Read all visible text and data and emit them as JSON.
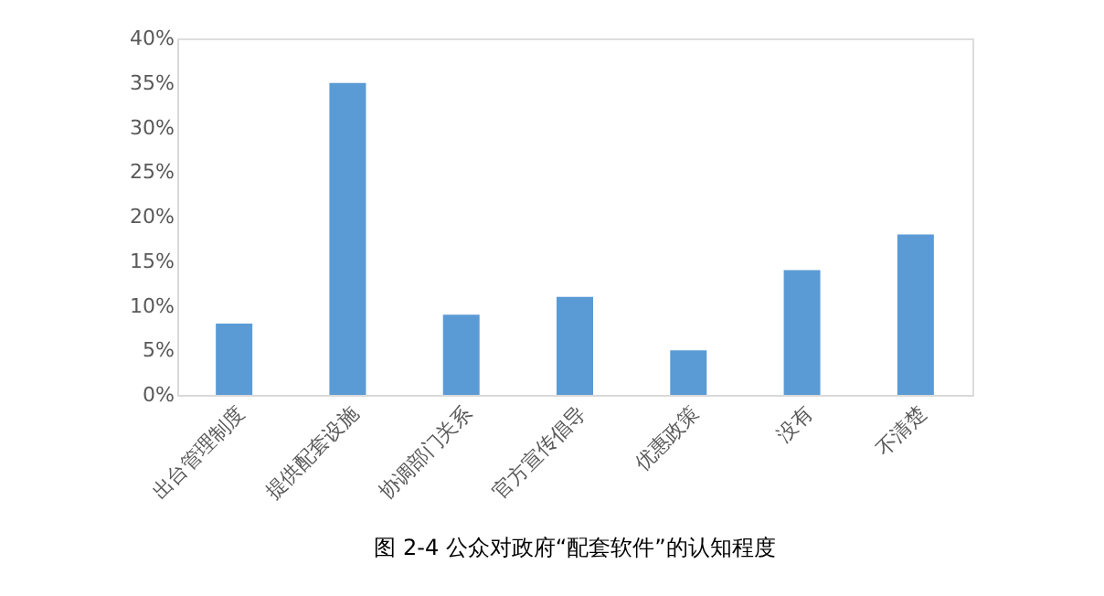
{
  "chart_data": {
    "type": "bar",
    "categories": [
      "出台管理制度",
      "提供配套设施",
      "协调部门关系",
      "官方宣传倡导",
      "优惠政策",
      "没有",
      "不清楚"
    ],
    "values": [
      8,
      35,
      9,
      11,
      5,
      14,
      18
    ],
    "color": "#5b9bd5",
    "ylim": [
      0,
      40
    ],
    "yticks": [
      {
        "value": 0,
        "label": "0%"
      },
      {
        "value": 5,
        "label": "5%"
      },
      {
        "value": 10,
        "label": "10%"
      },
      {
        "value": 15,
        "label": "15%"
      },
      {
        "value": 20,
        "label": "20%"
      },
      {
        "value": 25,
        "label": "25%"
      },
      {
        "value": 30,
        "label": "30%"
      },
      {
        "value": 35,
        "label": "35%"
      },
      {
        "value": 40,
        "label": "40%"
      }
    ],
    "grid": false,
    "annotations": [
      "图 2-4 公众对政府“配套软件”的认知程度"
    ]
  }
}
